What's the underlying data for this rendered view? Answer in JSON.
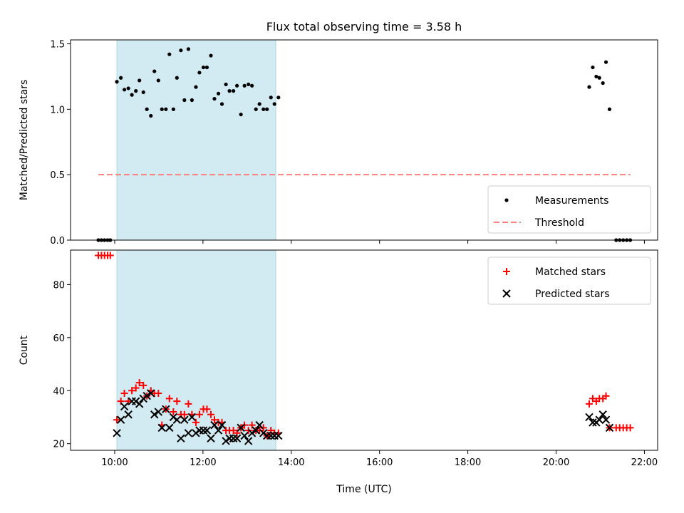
{
  "chart_data": {
    "title": "Flux total observing time = 3.58 h",
    "xlabel": "Time (UTC)",
    "x_ticks": [
      "10:00",
      "12:00",
      "14:00",
      "16:00",
      "18:00",
      "20:00",
      "22:00"
    ],
    "x_tick_hours": [
      10,
      12,
      14,
      16,
      18,
      20,
      22
    ],
    "xlim_hours": [
      9.0,
      22.3
    ],
    "shaded_interval_hours": [
      10.05,
      13.65
    ],
    "shade_color": "#add8e6",
    "panels": [
      {
        "type": "scatter",
        "ylabel": "Matched/Predicted stars",
        "ylim": [
          0,
          1.53
        ],
        "y_ticks": [
          "0.0",
          "0.5",
          "1.0",
          "1.5"
        ],
        "y_tick_values": [
          0,
          0.5,
          1.0,
          1.5
        ],
        "legend_position": "bottom-right",
        "series": [
          {
            "name": "Measurements",
            "marker": "dot",
            "color": "#000000",
            "points": [
              [
                9.63,
                0
              ],
              [
                9.7,
                0
              ],
              [
                9.77,
                0
              ],
              [
                9.84,
                0
              ],
              [
                9.9,
                0
              ],
              [
                10.05,
                1.21
              ],
              [
                10.14,
                1.24
              ],
              [
                10.22,
                1.15
              ],
              [
                10.31,
                1.16
              ],
              [
                10.39,
                1.11
              ],
              [
                10.48,
                1.14
              ],
              [
                10.56,
                1.22
              ],
              [
                10.65,
                1.13
              ],
              [
                10.73,
                1.0
              ],
              [
                10.82,
                0.95
              ],
              [
                10.9,
                1.29
              ],
              [
                10.99,
                1.22
              ],
              [
                11.07,
                1.0
              ],
              [
                11.16,
                1.0
              ],
              [
                11.24,
                1.42
              ],
              [
                11.33,
                1.0
              ],
              [
                11.41,
                1.24
              ],
              [
                11.5,
                1.45
              ],
              [
                11.58,
                1.07
              ],
              [
                11.67,
                1.46
              ],
              [
                11.75,
                1.07
              ],
              [
                11.84,
                1.17
              ],
              [
                11.92,
                1.28
              ],
              [
                12.01,
                1.32
              ],
              [
                12.09,
                1.32
              ],
              [
                12.18,
                1.41
              ],
              [
                12.26,
                1.08
              ],
              [
                12.35,
                1.12
              ],
              [
                12.43,
                1.04
              ],
              [
                12.52,
                1.19
              ],
              [
                12.6,
                1.14
              ],
              [
                12.69,
                1.14
              ],
              [
                12.77,
                1.18
              ],
              [
                12.86,
                0.96
              ],
              [
                12.94,
                1.18
              ],
              [
                13.03,
                1.19
              ],
              [
                13.11,
                1.18
              ],
              [
                13.2,
                1.0
              ],
              [
                13.28,
                1.04
              ],
              [
                13.37,
                1.0
              ],
              [
                13.45,
                1.0
              ],
              [
                13.54,
                1.09
              ],
              [
                13.62,
                1.04
              ],
              [
                13.71,
                1.09
              ],
              [
                20.75,
                1.17
              ],
              [
                20.83,
                1.32
              ],
              [
                20.91,
                1.25
              ],
              [
                20.98,
                1.24
              ],
              [
                21.06,
                1.2
              ],
              [
                21.13,
                1.36
              ],
              [
                21.21,
                1.0
              ],
              [
                21.36,
                0
              ],
              [
                21.44,
                0
              ],
              [
                21.52,
                0
              ],
              [
                21.6,
                0
              ],
              [
                21.68,
                0
              ]
            ]
          },
          {
            "name": "Threshold",
            "type": "line",
            "style": "dashed",
            "color": "#ff7f7f",
            "x_range": [
              9.63,
              21.68
            ],
            "y": 0.5
          }
        ]
      },
      {
        "type": "scatter",
        "ylabel": "Count",
        "ylim": [
          17.5,
          93
        ],
        "y_ticks": [
          "20",
          "40",
          "60",
          "80"
        ],
        "y_tick_values": [
          20,
          40,
          60,
          80
        ],
        "legend_position": "top-right",
        "series": [
          {
            "name": "Matched stars",
            "marker": "plus",
            "color": "#ff0000",
            "points": [
              [
                9.63,
                91
              ],
              [
                9.7,
                91
              ],
              [
                9.77,
                91
              ],
              [
                9.84,
                91
              ],
              [
                9.9,
                91
              ],
              [
                10.05,
                29
              ],
              [
                10.14,
                36
              ],
              [
                10.22,
                39
              ],
              [
                10.31,
                36
              ],
              [
                10.39,
                40
              ],
              [
                10.48,
                41
              ],
              [
                10.56,
                43
              ],
              [
                10.65,
                42
              ],
              [
                10.73,
                38
              ],
              [
                10.82,
                40
              ],
              [
                10.9,
                39
              ],
              [
                10.99,
                39
              ],
              [
                11.07,
                27
              ],
              [
                11.16,
                33
              ],
              [
                11.24,
                37
              ],
              [
                11.33,
                32
              ],
              [
                11.41,
                36
              ],
              [
                11.5,
                31
              ],
              [
                11.58,
                31
              ],
              [
                11.67,
                35
              ],
              [
                11.75,
                31
              ],
              [
                11.84,
                28
              ],
              [
                11.92,
                31
              ],
              [
                12.01,
                33
              ],
              [
                12.09,
                33
              ],
              [
                12.18,
                31
              ],
              [
                12.26,
                29
              ],
              [
                12.35,
                28
              ],
              [
                12.43,
                28
              ],
              [
                12.52,
                25
              ],
              [
                12.6,
                25
              ],
              [
                12.69,
                25
              ],
              [
                12.77,
                24
              ],
              [
                12.86,
                26
              ],
              [
                12.94,
                27
              ],
              [
                13.03,
                25
              ],
              [
                13.11,
                27
              ],
              [
                13.2,
                25
              ],
              [
                13.28,
                25
              ],
              [
                13.37,
                26
              ],
              [
                13.45,
                23
              ],
              [
                13.54,
                25
              ],
              [
                13.62,
                24
              ],
              [
                13.71,
                24
              ],
              [
                20.75,
                35
              ],
              [
                20.83,
                37
              ],
              [
                20.91,
                36
              ],
              [
                20.98,
                37
              ],
              [
                21.06,
                37
              ],
              [
                21.13,
                38
              ],
              [
                21.21,
                26
              ],
              [
                21.36,
                26
              ],
              [
                21.44,
                26
              ],
              [
                21.52,
                26
              ],
              [
                21.6,
                26
              ],
              [
                21.68,
                26
              ]
            ]
          },
          {
            "name": "Predicted stars",
            "marker": "x",
            "color": "#000000",
            "points": [
              [
                10.05,
                24
              ],
              [
                10.14,
                29
              ],
              [
                10.22,
                34
              ],
              [
                10.31,
                31
              ],
              [
                10.39,
                36
              ],
              [
                10.48,
                36
              ],
              [
                10.56,
                35
              ],
              [
                10.65,
                37
              ],
              [
                10.73,
                38
              ],
              [
                10.82,
                39
              ],
              [
                10.9,
                31
              ],
              [
                10.99,
                32
              ],
              [
                11.07,
                26
              ],
              [
                11.16,
                33
              ],
              [
                11.24,
                26
              ],
              [
                11.33,
                30
              ],
              [
                11.41,
                29
              ],
              [
                11.5,
                22
              ],
              [
                11.58,
                29
              ],
              [
                11.67,
                24
              ],
              [
                11.75,
                30
              ],
              [
                11.84,
                24
              ],
              [
                11.92,
                25
              ],
              [
                12.01,
                25
              ],
              [
                12.09,
                25
              ],
              [
                12.18,
                22
              ],
              [
                12.26,
                27
              ],
              [
                12.35,
                25
              ],
              [
                12.43,
                27
              ],
              [
                12.52,
                21
              ],
              [
                12.6,
                22
              ],
              [
                12.69,
                22
              ],
              [
                12.77,
                22
              ],
              [
                12.86,
                26
              ],
              [
                12.94,
                23
              ],
              [
                13.03,
                21
              ],
              [
                13.11,
                24
              ],
              [
                13.2,
                25
              ],
              [
                13.28,
                27
              ],
              [
                13.37,
                24
              ],
              [
                13.45,
                23
              ],
              [
                13.54,
                23
              ],
              [
                13.62,
                23
              ],
              [
                13.71,
                23
              ],
              [
                20.75,
                30
              ],
              [
                20.83,
                28
              ],
              [
                20.91,
                28
              ],
              [
                20.98,
                29
              ],
              [
                21.06,
                31
              ],
              [
                21.13,
                29
              ],
              [
                21.21,
                26
              ]
            ]
          }
        ]
      }
    ]
  }
}
